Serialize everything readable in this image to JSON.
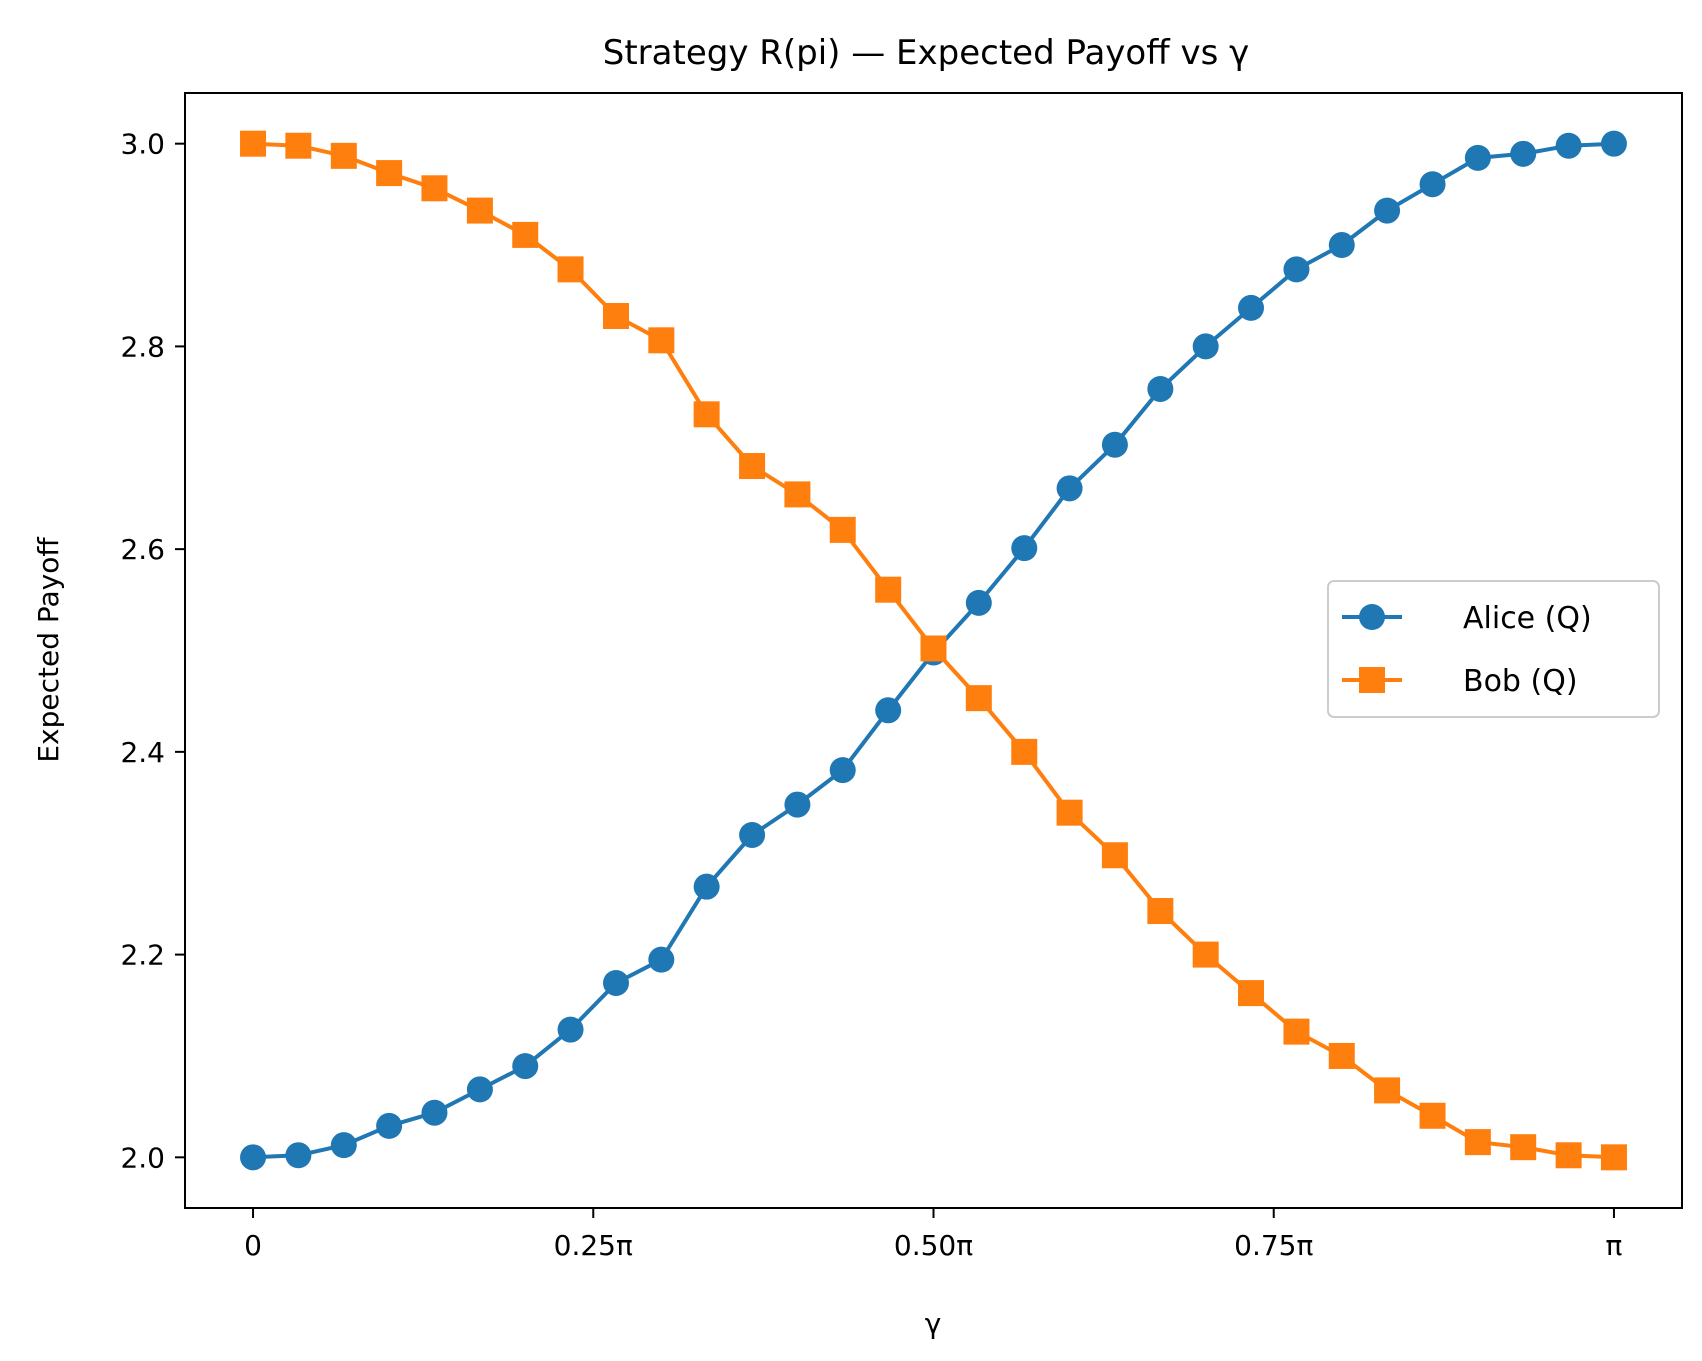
{
  "chart_data": {
    "type": "line",
    "title": "Strategy R(pi) — Expected Payoff vs γ",
    "xlabel": "γ",
    "ylabel": "Expected Payoff",
    "xlim": [
      -0.05,
      1.05
    ],
    "ylim": [
      1.95,
      3.05
    ],
    "x_unit": "π",
    "x_ticks": [
      0,
      0.25,
      0.5,
      0.75,
      1
    ],
    "x_tick_labels": [
      "0",
      "0.25π",
      "0.50π",
      "0.75π",
      "π"
    ],
    "y_ticks": [
      2.0,
      2.2,
      2.4,
      2.6,
      2.8,
      3.0
    ],
    "y_tick_labels": [
      "2.0",
      "2.2",
      "2.4",
      "2.6",
      "2.8",
      "3.0"
    ],
    "grid": false,
    "legend_position": "center-right",
    "x": [
      0,
      0.0333,
      0.0667,
      0.1,
      0.1333,
      0.1667,
      0.2,
      0.2333,
      0.2667,
      0.3,
      0.3333,
      0.3667,
      0.4,
      0.4333,
      0.4667,
      0.5,
      0.5333,
      0.5667,
      0.6,
      0.6333,
      0.6667,
      0.7,
      0.7333,
      0.7667,
      0.8,
      0.8333,
      0.8667,
      0.9,
      0.9333,
      0.9667,
      1.0
    ],
    "series": [
      {
        "name": "Alice (Q)",
        "color": "#1f77b4",
        "marker": "circle",
        "values": [
          2.0,
          2.002,
          2.012,
          2.031,
          2.044,
          2.067,
          2.09,
          2.126,
          2.172,
          2.195,
          2.267,
          2.318,
          2.348,
          2.382,
          2.441,
          2.498,
          2.547,
          2.601,
          2.66,
          2.703,
          2.758,
          2.8,
          2.838,
          2.876,
          2.9,
          2.934,
          2.96,
          2.986,
          2.99,
          2.998,
          3.0
        ]
      },
      {
        "name": "Bob (Q)",
        "color": "#ff7f0e",
        "marker": "square",
        "values": [
          3.0,
          2.998,
          2.988,
          2.971,
          2.956,
          2.934,
          2.91,
          2.876,
          2.83,
          2.806,
          2.733,
          2.682,
          2.654,
          2.619,
          2.56,
          2.502,
          2.453,
          2.4,
          2.34,
          2.298,
          2.243,
          2.2,
          2.162,
          2.124,
          2.1,
          2.066,
          2.041,
          2.015,
          2.01,
          2.002,
          2.0
        ]
      }
    ]
  }
}
